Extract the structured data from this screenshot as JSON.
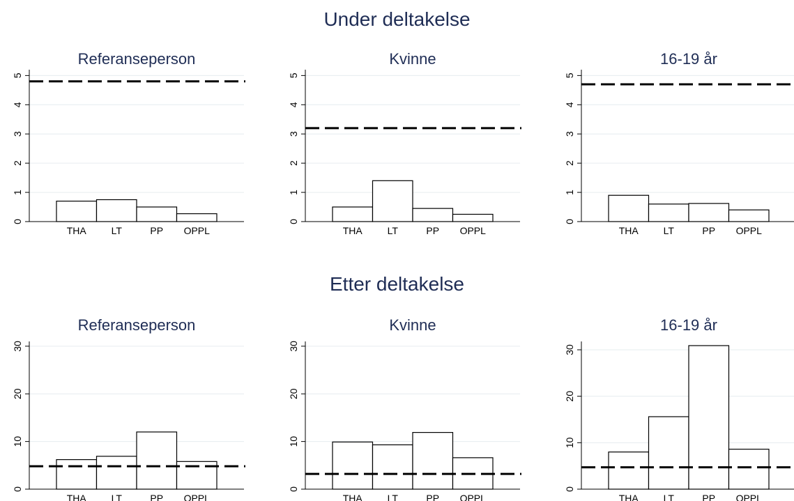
{
  "row_titles": [
    "Under deltakelse",
    "Etter deltakelse"
  ],
  "chart_data": [
    {
      "type": "bar",
      "title": "Referanseperson",
      "categories": [
        "THA",
        "LT",
        "PP",
        "OPPL"
      ],
      "values": [
        0.7,
        0.75,
        0.5,
        0.27
      ],
      "reference_line": 4.8,
      "ylim": [
        0,
        5.2
      ],
      "yticks": [
        0,
        1,
        2,
        3,
        4,
        5
      ],
      "grid": true
    },
    {
      "type": "bar",
      "title": "Kvinne",
      "categories": [
        "THA",
        "LT",
        "PP",
        "OPPL"
      ],
      "values": [
        0.5,
        1.4,
        0.45,
        0.25
      ],
      "reference_line": 3.2,
      "ylim": [
        0,
        5.2
      ],
      "yticks": [
        0,
        1,
        2,
        3,
        4,
        5
      ],
      "grid": true
    },
    {
      "type": "bar",
      "title": "16-19 år",
      "categories": [
        "THA",
        "LT",
        "PP",
        "OPPL"
      ],
      "values": [
        0.9,
        0.6,
        0.62,
        0.4
      ],
      "reference_line": 4.7,
      "ylim": [
        0,
        5.2
      ],
      "yticks": [
        0,
        1,
        2,
        3,
        4,
        5
      ],
      "grid": true
    },
    {
      "type": "bar",
      "title": "Referanseperson",
      "categories": [
        "THA",
        "LT",
        "PP",
        "OPPL"
      ],
      "values": [
        6.2,
        6.9,
        12.0,
        5.8
      ],
      "reference_line": 4.8,
      "ylim": [
        0,
        31
      ],
      "yticks": [
        0,
        10,
        20,
        30
      ],
      "grid": true
    },
    {
      "type": "bar",
      "title": "Kvinne",
      "categories": [
        "THA",
        "LT",
        "PP",
        "OPPL"
      ],
      "values": [
        9.9,
        9.3,
        11.9,
        6.6
      ],
      "reference_line": 3.2,
      "ylim": [
        0,
        31
      ],
      "yticks": [
        0,
        10,
        20,
        30
      ],
      "grid": true
    },
    {
      "type": "bar",
      "title": "16-19 år",
      "categories": [
        "THA",
        "LT",
        "PP",
        "OPPL"
      ],
      "values": [
        8.0,
        15.6,
        30.9,
        8.6
      ],
      "reference_line": 4.7,
      "ylim": [
        0,
        31.8
      ],
      "yticks": [
        0,
        10,
        20,
        30
      ],
      "grid": true
    }
  ]
}
